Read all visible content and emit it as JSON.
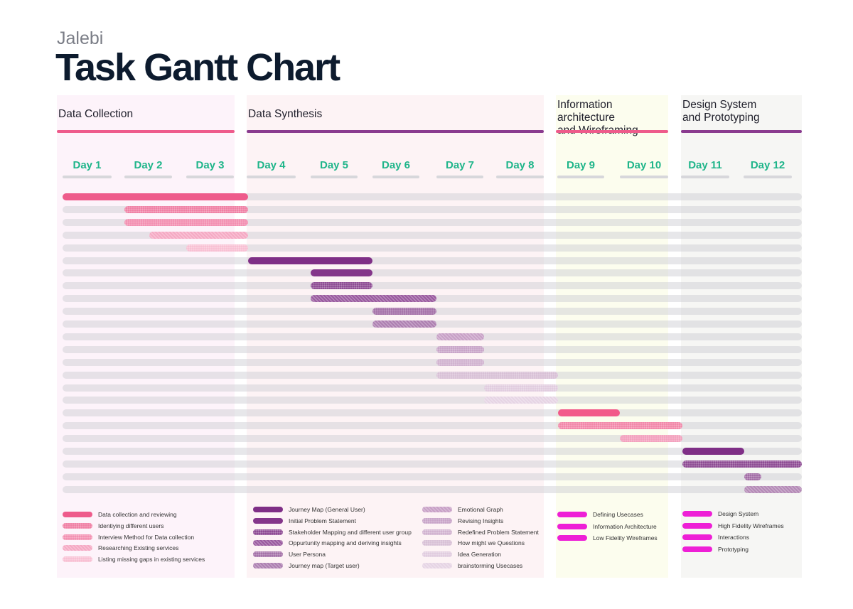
{
  "brand": "Jalebi",
  "title": "Task Gantt Chart",
  "chart_data": {
    "type": "gantt",
    "title": "Task Gantt Chart",
    "subtitle": "Jalebi",
    "days": [
      "Day 1",
      "Day 2",
      "Day 3",
      "Day 4",
      "Day 5",
      "Day 6",
      "Day 7",
      "Day 8",
      "Day 9",
      "Day 10",
      "Day 11",
      "Day 12"
    ],
    "phases": [
      {
        "name": "Data Collection",
        "title_lines": [
          "Data Collection"
        ],
        "start_day": 1,
        "end_day": 3,
        "color": "#ee5b8b",
        "bg": "#fdf3fa"
      },
      {
        "name": "Data Synthesis",
        "title_lines": [
          "Data Synthesis"
        ],
        "start_day": 4,
        "end_day": 8,
        "color": "#8a3b8f",
        "bg": "#fdf3f5"
      },
      {
        "name": "Information architecture and Wireframing",
        "title_lines": [
          "Information architecture",
          "and Wireframing"
        ],
        "start_day": 9,
        "end_day": 10,
        "color": "#ee5b8b",
        "bg": "#fcfdee"
      },
      {
        "name": "Design System and Prototyping",
        "title_lines": [
          "Design System",
          "and Prototyping"
        ],
        "start_day": 11,
        "end_day": 12,
        "color": "#8a3b8f",
        "bg": "#f6f6f4"
      }
    ],
    "tasks": [
      {
        "name": "Data collection and reviewing",
        "start": 0.0,
        "end": 3.0,
        "color": "#ee5b8b",
        "pattern": "solid"
      },
      {
        "name": "Identiying different users",
        "start": 1.0,
        "end": 3.0,
        "color": "#f07fa4",
        "pattern": "dots"
      },
      {
        "name": "Interview Method for Data collection",
        "start": 1.0,
        "end": 3.0,
        "color": "#f38fb1",
        "pattern": "dots"
      },
      {
        "name": "Researching Existing services",
        "start": 1.4,
        "end": 3.0,
        "color": "#f5a9c4",
        "pattern": "hatch"
      },
      {
        "name": "Listing missing gaps in existing services",
        "start": 2.0,
        "end": 3.0,
        "color": "#f8bfd3",
        "pattern": "dots"
      },
      {
        "name": "Journey Map (General User)",
        "start": 3.0,
        "end": 5.0,
        "color": "#7f2f86",
        "pattern": "solid"
      },
      {
        "name": "Initial Problem Statement",
        "start": 4.0,
        "end": 5.0,
        "color": "#84368a",
        "pattern": "solid"
      },
      {
        "name": "Stakeholder Mapping and different user group",
        "start": 4.0,
        "end": 5.0,
        "color": "#8d4a93",
        "pattern": "dots"
      },
      {
        "name": "Oppurtunity mapping and deriving insights",
        "start": 4.0,
        "end": 6.0,
        "color": "#9a5a9f",
        "pattern": "hatch"
      },
      {
        "name": "User Persona",
        "start": 5.0,
        "end": 6.0,
        "color": "#a470a8",
        "pattern": "dots"
      },
      {
        "name": "Journey map (Target user)",
        "start": 5.0,
        "end": 6.0,
        "color": "#ad7fb1",
        "pattern": "hatch"
      },
      {
        "name": "Emotional Graph",
        "start": 6.0,
        "end": 7.0,
        "color": "#c8a0c6",
        "pattern": "hatch"
      },
      {
        "name": "Revising Insights",
        "start": 6.0,
        "end": 7.0,
        "color": "#c8a4c8",
        "pattern": "dots"
      },
      {
        "name": "Redefined Problem Statement",
        "start": 6.0,
        "end": 7.0,
        "color": "#d1b2d0",
        "pattern": "dots"
      },
      {
        "name": "How might we Questions",
        "start": 6.0,
        "end": 8.0,
        "color": "#d8c0d6",
        "pattern": "dots"
      },
      {
        "name": "Idea Generation",
        "start": 7.0,
        "end": 8.0,
        "color": "#e1ccdf",
        "pattern": "dots"
      },
      {
        "name": "brainstorming Usecases",
        "start": 7.0,
        "end": 8.0,
        "color": "#e6d4e4",
        "pattern": "hatch"
      },
      {
        "name": "Defining Usecases",
        "start": 8.0,
        "end": 9.0,
        "color": "#f25a8a",
        "pattern": "solid"
      },
      {
        "name": "Information Architecture",
        "start": 8.0,
        "end": 10.0,
        "color": "#f286a8",
        "pattern": "dots"
      },
      {
        "name": "Low Fidelity Wireframes",
        "start": 9.0,
        "end": 10.0,
        "color": "#f3a0bd",
        "pattern": "dots"
      },
      {
        "name": "Design System",
        "start": 10.0,
        "end": 11.0,
        "color": "#7f2f86",
        "pattern": "solid"
      },
      {
        "name": "High Fidelity Wireframes",
        "start": 10.0,
        "end": 12.0,
        "color": "#8d4a93",
        "pattern": "dots"
      },
      {
        "name": "Interactions",
        "start": 11.0,
        "end": 11.3,
        "color": "#a16aa5",
        "pattern": "dots"
      },
      {
        "name": "Prototyping",
        "start": 11.0,
        "end": 12.0,
        "color": "#b48ab6",
        "pattern": "hatch"
      }
    ],
    "legend": [
      {
        "items": [
          "Data collection and reviewing",
          "Identiying different users",
          "Interview Method for Data collection",
          "Researching Existing services",
          "Listing missing gaps in existing services"
        ]
      },
      {
        "items": [
          "Journey Map (General User)",
          "Initial Problem Statement",
          "Stakeholder Mapping and different user group",
          "Oppurtunity mapping and deriving insights",
          "User Persona",
          "Journey map (Target user)"
        ]
      },
      {
        "items": [
          "Emotional Graph",
          "Revising Insights",
          "Redefined Problem Statement",
          "How might we Questions",
          "Idea Generation",
          "brainstorming Usecases"
        ]
      },
      {
        "items": [
          "Defining Usecases",
          "Information Architecture",
          "Low Fidelity Wireframes"
        ],
        "color": "#ee1fd6"
      },
      {
        "items": [
          "Design System",
          "High Fidelity Wireframes",
          "Interactions",
          "Prototyping"
        ],
        "color": "#ee1fd6"
      }
    ]
  }
}
